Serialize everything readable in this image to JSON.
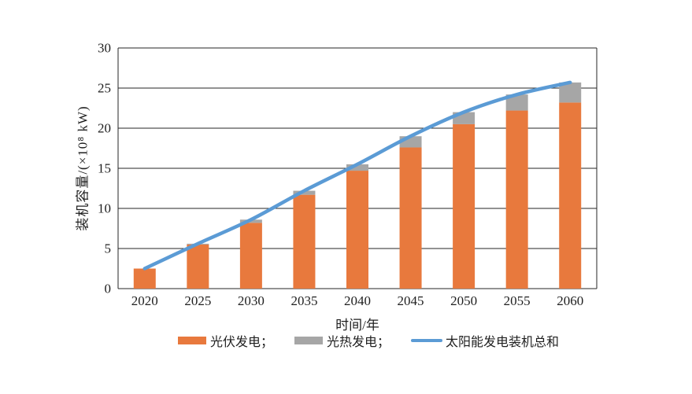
{
  "chart_data": {
    "type": "bar",
    "subtype": "stacked-bars-with-smoothed-line-overlay",
    "categories": [
      "2020",
      "2025",
      "2030",
      "2035",
      "2040",
      "2045",
      "2050",
      "2055",
      "2060"
    ],
    "series": [
      {
        "name": "光伏发电",
        "type": "bar",
        "color": "#E8793D",
        "values": [
          2.5,
          5.5,
          8.2,
          11.7,
          14.7,
          17.6,
          20.5,
          22.2,
          23.2
        ]
      },
      {
        "name": "光热发电",
        "type": "bar",
        "color": "#A6A6A6",
        "values": [
          0,
          0.1,
          0.4,
          0.5,
          0.8,
          1.4,
          1.5,
          2.0,
          2.5
        ]
      },
      {
        "name": "太阳能发电装机总和",
        "type": "line",
        "color": "#5B9BD5",
        "values": [
          2.5,
          5.6,
          8.6,
          12.2,
          15.5,
          19.0,
          22.0,
          24.2,
          25.7
        ]
      }
    ],
    "title": "",
    "xlabel": "时间/年",
    "ylabel": "装机容量/(×10⁸ kW)",
    "ylim": [
      0,
      30
    ],
    "y_ticks": [
      0,
      5,
      10,
      15,
      20,
      25,
      30
    ],
    "grid": true,
    "legend_position": "bottom"
  },
  "legend": {
    "items": [
      {
        "label": "光伏发电；"
      },
      {
        "label": "光热发电；"
      },
      {
        "label": "太阳能发电装机总和"
      }
    ]
  },
  "colors": {
    "pv_bar": "#E8793D",
    "csp_bar": "#A6A6A6",
    "total_line": "#5B9BD5",
    "axis": "#262626",
    "text": "#1f1f1f",
    "background": "#FFFFFF"
  }
}
